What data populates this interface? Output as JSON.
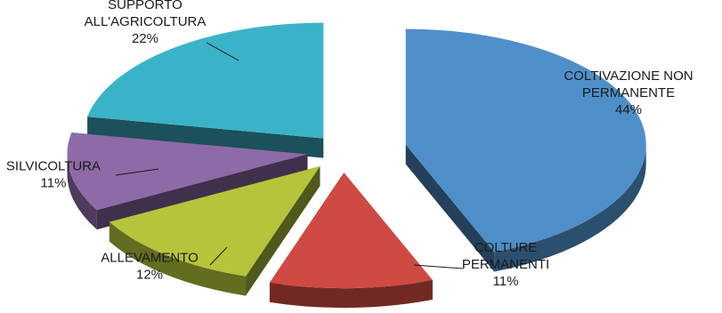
{
  "chart_data": {
    "type": "pie",
    "style": "3d-exploded",
    "title": "",
    "slices": [
      {
        "label_lines": [
          "COLTIVAZIONE NON",
          "PERMANENTE"
        ],
        "value_text": "44%",
        "value": 44,
        "color": "#4f8fc9"
      },
      {
        "label_lines": [
          "COLTURE",
          "PERMANENTI"
        ],
        "value_text": "11%",
        "value": 11,
        "color": "#cf4a42"
      },
      {
        "label_lines": [
          "ALLEVAMENTO"
        ],
        "value_text": "12%",
        "value": 12,
        "color": "#b5c43b"
      },
      {
        "label_lines": [
          "SILVICOLTURA"
        ],
        "value_text": "11%",
        "value": 11,
        "color": "#8e6aa8"
      },
      {
        "label_lines": [
          "SUPPORTO",
          "ALL'AGRICOLTURA"
        ],
        "value_text": "22%",
        "value": 22,
        "color": "#3ab3c9"
      }
    ]
  }
}
